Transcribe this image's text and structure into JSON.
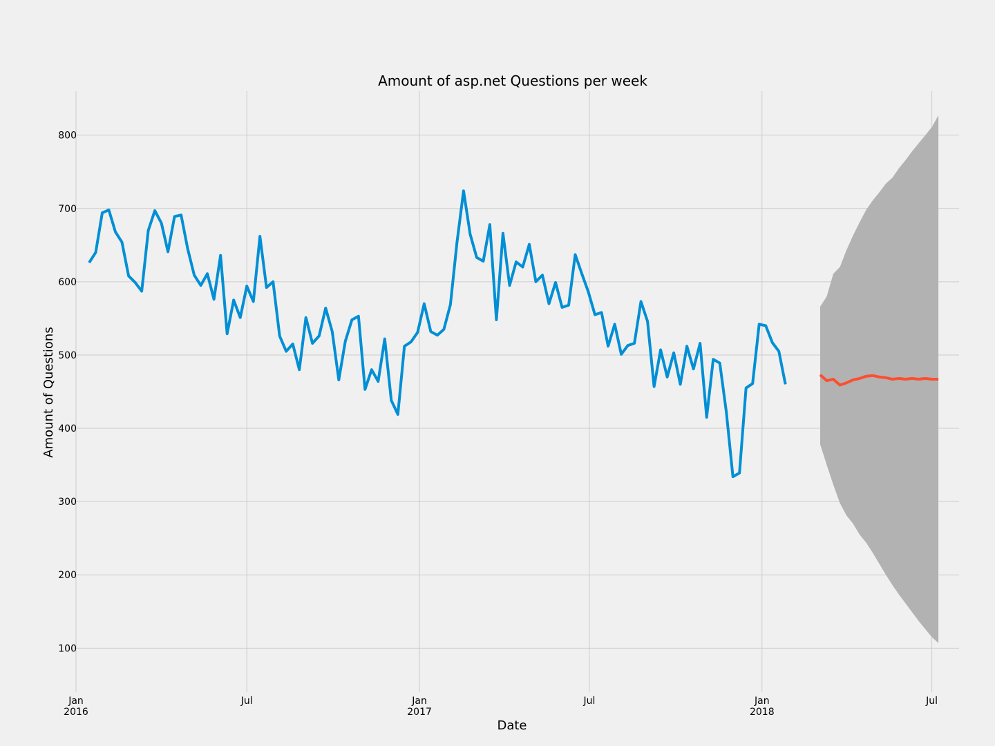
{
  "chart_data": {
    "type": "line",
    "title": "Amount of asp.net Questions per week",
    "xlabel": "Date",
    "ylabel": "Amount of Questions",
    "grid": true,
    "legend": "none",
    "xlim": [
      "2016-01-01",
      "2018-07-30"
    ],
    "ylim": [
      40,
      860
    ],
    "x_ticks": [
      {
        "date": "2016-01-01",
        "label": "Jan",
        "sublabel": "2016"
      },
      {
        "date": "2016-07-01",
        "label": "Jul",
        "sublabel": ""
      },
      {
        "date": "2017-01-01",
        "label": "Jan",
        "sublabel": "2017"
      },
      {
        "date": "2017-07-01",
        "label": "Jul",
        "sublabel": ""
      },
      {
        "date": "2018-01-01",
        "label": "Jan",
        "sublabel": "2018"
      },
      {
        "date": "2018-07-01",
        "label": "Jul",
        "sublabel": ""
      }
    ],
    "y_ticks": [
      {
        "value": 100,
        "label": "100"
      },
      {
        "value": 200,
        "label": "200"
      },
      {
        "value": 300,
        "label": "300"
      },
      {
        "value": 400,
        "label": "400"
      },
      {
        "value": 500,
        "label": "500"
      },
      {
        "value": 600,
        "label": "600"
      },
      {
        "value": 700,
        "label": "700"
      },
      {
        "value": 800,
        "label": "800"
      }
    ],
    "observed": {
      "color": "#008fd5",
      "start": "2016-01-15",
      "interval_days": 7,
      "values": [
        626,
        640,
        694,
        698,
        668,
        654,
        608,
        599,
        587,
        670,
        697,
        680,
        641,
        689,
        691,
        645,
        609,
        595,
        611,
        576,
        636,
        529,
        575,
        551,
        594,
        573,
        662,
        592,
        600,
        526,
        505,
        515,
        480,
        551,
        516,
        526,
        564,
        532,
        466,
        519,
        548,
        553,
        453,
        480,
        464,
        522,
        438,
        419,
        512,
        518,
        531,
        570,
        532,
        527,
        535,
        569,
        654,
        724,
        665,
        633,
        628,
        678,
        548,
        666,
        595,
        627,
        620,
        651,
        600,
        609,
        570,
        599,
        565,
        568,
        637,
        611,
        586,
        555,
        558,
        512,
        542,
        501,
        513,
        516,
        573,
        546,
        457,
        507,
        470,
        503,
        460,
        512,
        481,
        516,
        415,
        494,
        489,
        422,
        334,
        339,
        455,
        461,
        542,
        540,
        517,
        505,
        460
      ]
    },
    "forecast": {
      "color": "#fc4f30",
      "interval_color": "#b2b2b2",
      "start": "2018-03-04",
      "interval_days": 7,
      "values": [
        473,
        465,
        467,
        459,
        462,
        466,
        468,
        471,
        472,
        470,
        469,
        467,
        468,
        467,
        468,
        467,
        468,
        467,
        467
      ],
      "lower": [
        378,
        350,
        323,
        298,
        281,
        270,
        255,
        244,
        230,
        215,
        200,
        186,
        173,
        161,
        149,
        137,
        126,
        115,
        107
      ],
      "upper": [
        566,
        580,
        611,
        620,
        643,
        663,
        681,
        698,
        711,
        722,
        734,
        742,
        755,
        766,
        778,
        789,
        800,
        811,
        827
      ]
    }
  }
}
